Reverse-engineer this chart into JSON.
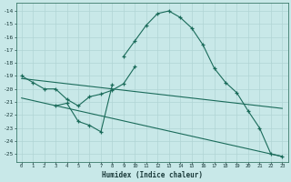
{
  "xlabel": "Humidex (Indice chaleur)",
  "bg_color": "#c8e8e8",
  "grid_color": "#b0d4d4",
  "line_color": "#1a6b5a",
  "xlim": [
    -0.5,
    23.5
  ],
  "ylim": [
    -25.6,
    -13.4
  ],
  "xticks": [
    0,
    1,
    2,
    3,
    4,
    5,
    6,
    7,
    8,
    9,
    10,
    11,
    12,
    13,
    14,
    15,
    16,
    17,
    18,
    19,
    20,
    21,
    22,
    23
  ],
  "yticks": [
    -14,
    -15,
    -16,
    -17,
    -18,
    -19,
    -20,
    -21,
    -22,
    -23,
    -24,
    -25
  ],
  "lines": [
    {
      "x": [
        9,
        10,
        11,
        12,
        13,
        14,
        15,
        16,
        17,
        18,
        19,
        20,
        21,
        22,
        23
      ],
      "y": [
        -17.5,
        -16.3,
        -15.1,
        -14.2,
        -14.0,
        -14.5,
        -15.3,
        -16.6,
        -18.4,
        -19.5,
        -20.3,
        -21.7,
        -23.0,
        -25.0,
        -25.2
      ],
      "marker": true
    },
    {
      "x": [
        0,
        1,
        2,
        3,
        4,
        5,
        6,
        7,
        8,
        9,
        10
      ],
      "y": [
        -19.0,
        -19.5,
        -20.0,
        -20.0,
        -20.8,
        -21.3,
        -20.6,
        -20.4,
        -20.1,
        -19.6,
        -18.3
      ],
      "marker": true
    },
    {
      "x": [
        3,
        4,
        5,
        6,
        7,
        8
      ],
      "y": [
        -21.3,
        -21.1,
        -22.5,
        -22.8,
        -23.3,
        -19.7
      ],
      "marker": true
    },
    {
      "x": [
        0,
        23
      ],
      "y": [
        -19.2,
        -21.5
      ],
      "marker": false
    },
    {
      "x": [
        0,
        23
      ],
      "y": [
        -20.7,
        -25.2
      ],
      "marker": false
    }
  ]
}
